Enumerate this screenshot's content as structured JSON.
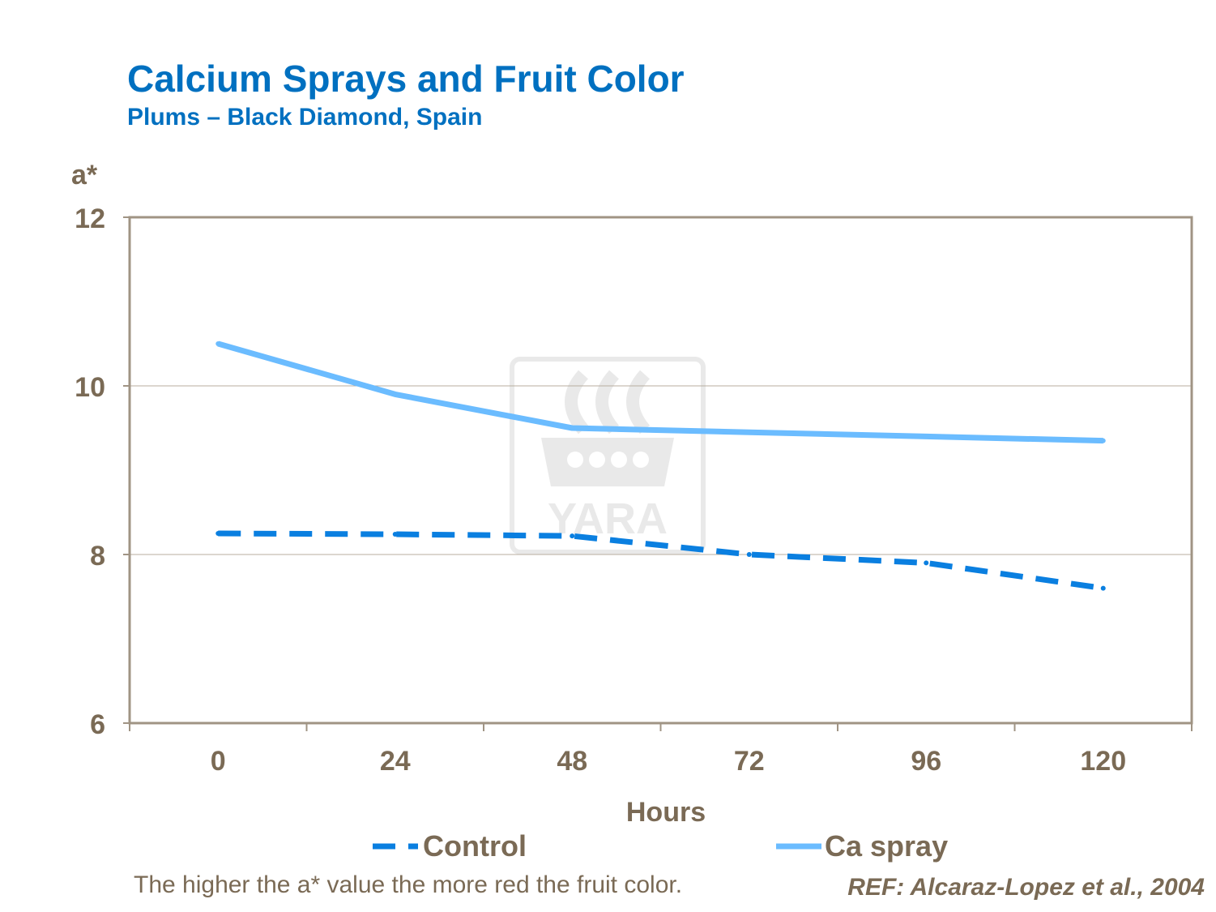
{
  "header": {
    "title": "Calcium Sprays and Fruit Color",
    "subtitle": "Plums – Black Diamond, Spain"
  },
  "watermark": {
    "text": "YARA"
  },
  "footer": {
    "note": "The higher the a* value the more red the fruit color.",
    "reference": "REF: Alcaraz-Lopez et al., 2004"
  },
  "chart_data": {
    "type": "line",
    "title": "Calcium Sprays and Fruit Color",
    "subtitle": "Plums – Black Diamond, Spain",
    "xlabel": "Hours",
    "ylabel": "a*",
    "categories": [
      "0",
      "24",
      "48",
      "72",
      "96",
      "120"
    ],
    "ylim": [
      6,
      12
    ],
    "yticks": [
      "6",
      "8",
      "10",
      "12"
    ],
    "grid": true,
    "legend": "bottom",
    "series": [
      {
        "name": "Control",
        "values": [
          8.25,
          8.24,
          8.22,
          8.0,
          7.9,
          7.6
        ],
        "color": "#0a7fe0",
        "style": "dashed"
      },
      {
        "name": "Ca spray",
        "values": [
          10.5,
          9.9,
          9.5,
          9.45,
          9.4,
          9.35
        ],
        "color": "#6bbcff",
        "style": "solid"
      }
    ]
  }
}
